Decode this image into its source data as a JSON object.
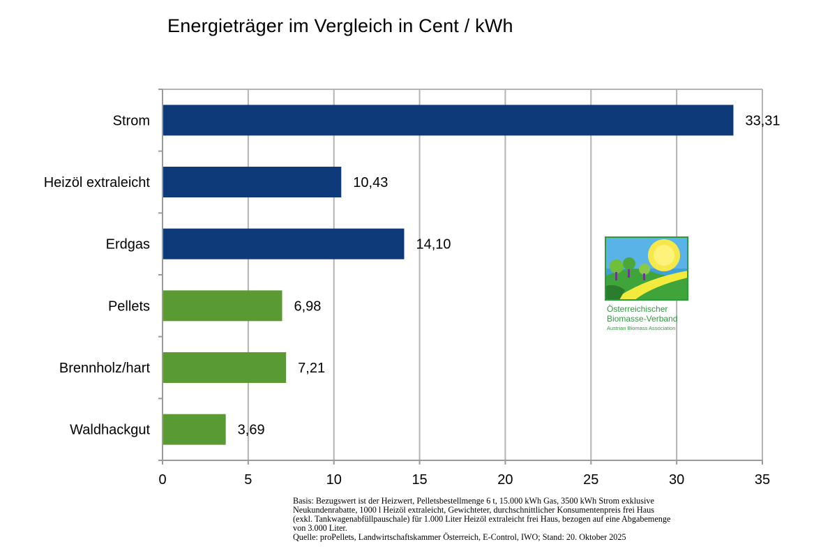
{
  "chart_data": {
    "type": "bar",
    "orientation": "horizontal",
    "title": "Energieträger im Vergleich in Cent / kWh",
    "categories": [
      "Strom",
      "Heizöl extraleicht",
      "Erdgas",
      "Pellets",
      "Brennholz/hart",
      "Waldhackgut"
    ],
    "values": [
      33.31,
      10.43,
      14.1,
      6.98,
      7.21,
      3.69
    ],
    "value_labels": [
      "33,31",
      "10,43",
      "14,10",
      "6,98",
      "7,21",
      "3,69"
    ],
    "bar_colors": [
      "#0e3a7a",
      "#0e3a7a",
      "#0e3a7a",
      "#5a9a32",
      "#5a9a32",
      "#5a9a32"
    ],
    "xlim": [
      0,
      35
    ],
    "xticks": [
      0,
      5,
      10,
      15,
      20,
      25,
      30,
      35
    ],
    "xtick_labels": [
      "0",
      "5",
      "10",
      "15",
      "20",
      "25",
      "30",
      "35"
    ],
    "grid": "vertical",
    "grid_color": "#b3b3b3"
  },
  "footnote": {
    "line1": "Basis: Bezugswert ist der Heizwert, Pelletsbestellmenge 6 t, 15.000 kWh Gas, 3500 kWh Strom exklusive",
    "line2": "Neukundenrabatte, 1000 l Heizöl extraleicht, Gewichteter, durchschnittlicher Konsumentenpreis frei Haus",
    "line3": "(exkl. Tankwagenabfüllpauschale) für 1.000 Liter Heizöl extraleicht frei Haus, bezogen auf eine Abgabemenge",
    "line4": "von 3.000 Liter.",
    "line5": "Quelle: proPellets, Landwirtschaftskammer Österreich, E-Control, IWO; Stand: 20. Oktober 2025"
  },
  "logo": {
    "line1": "Österreichischer",
    "line2": "Biomasse-Verband",
    "line3": "Austrian Biomass Association"
  }
}
